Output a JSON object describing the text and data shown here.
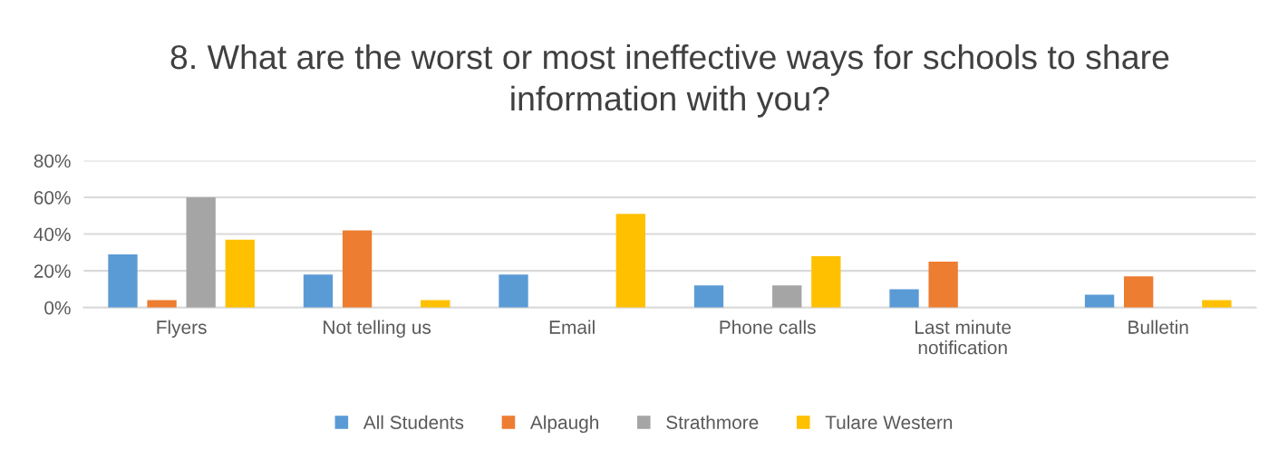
{
  "chart_data": {
    "type": "bar",
    "title": "8. What are the worst or most ineffective ways for schools to share\ninformation with you?",
    "categories": [
      "Flyers",
      "Not telling us",
      "Email",
      "Phone calls",
      "Last minute\nnotification",
      "Bulletin"
    ],
    "series": [
      {
        "name": "All Students",
        "color": "#5b9bd5",
        "values": [
          29,
          18,
          18,
          12,
          10,
          7
        ]
      },
      {
        "name": "Alpaugh",
        "color": "#ed7d31",
        "values": [
          4,
          42,
          0,
          0,
          25,
          17
        ]
      },
      {
        "name": "Strathmore",
        "color": "#a5a5a5",
        "values": [
          60,
          0,
          0,
          12,
          0,
          0
        ]
      },
      {
        "name": "Tulare Western",
        "color": "#ffc000",
        "values": [
          37,
          4,
          51,
          28,
          0,
          4
        ]
      }
    ],
    "ylim": [
      0,
      80
    ],
    "yticks": [
      {
        "value": 0,
        "label": "0%"
      },
      {
        "value": 20,
        "label": "20%"
      },
      {
        "value": 40,
        "label": "40%"
      },
      {
        "value": 60,
        "label": "60%"
      },
      {
        "value": 80,
        "label": "80%"
      }
    ],
    "grid": "y",
    "legend": "bottom"
  }
}
